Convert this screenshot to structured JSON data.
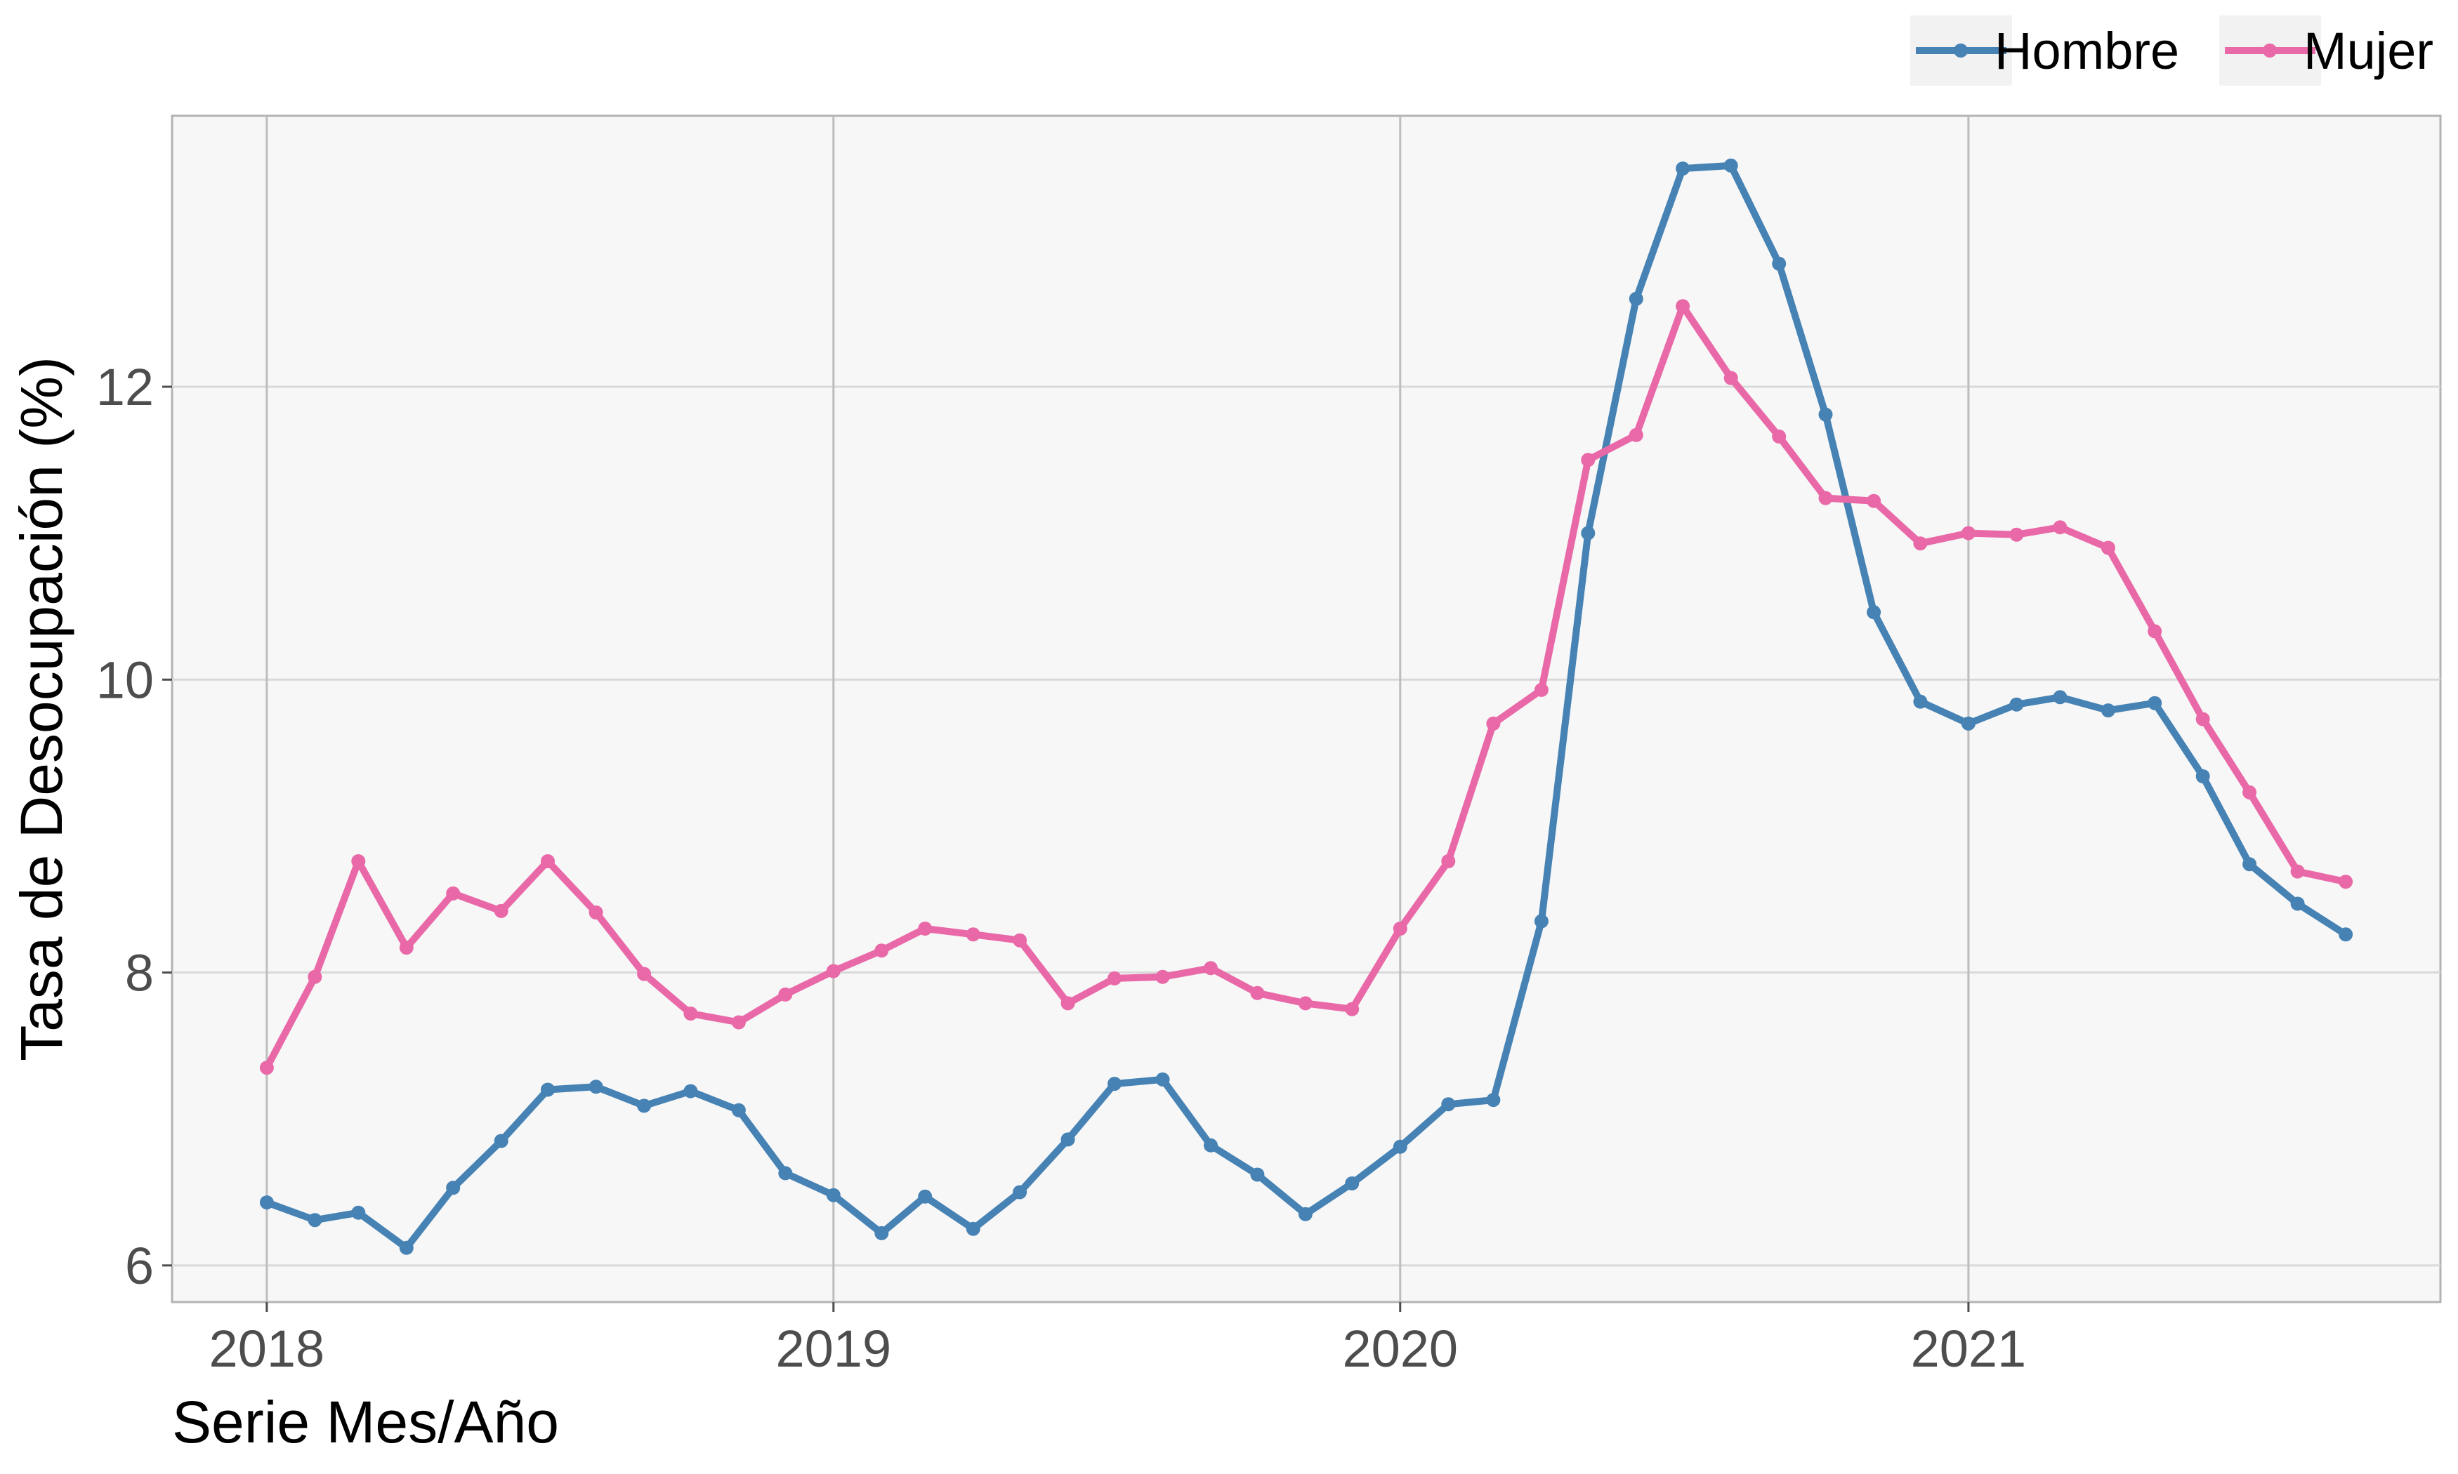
{
  "chart_data": {
    "type": "line",
    "xlabel": "Serie Mes/Año",
    "ylabel": "Tasa de Desocupación (%)",
    "x_ticks": [
      2018,
      2019,
      2020,
      2021
    ],
    "y_ticks": [
      6,
      8,
      10,
      12
    ],
    "xlim": [
      "2017-11-01",
      "2021-11-01"
    ],
    "ylim": [
      5.75,
      13.85
    ],
    "grid": true,
    "legend_position": "top-right",
    "x": [
      "2018-01",
      "2018-02",
      "2018-03",
      "2018-04",
      "2018-05",
      "2018-06",
      "2018-07",
      "2018-08",
      "2018-09",
      "2018-10",
      "2018-11",
      "2018-12",
      "2019-01",
      "2019-02",
      "2019-03",
      "2019-04",
      "2019-05",
      "2019-06",
      "2019-07",
      "2019-08",
      "2019-09",
      "2019-10",
      "2019-11",
      "2019-12",
      "2020-01",
      "2020-02",
      "2020-03",
      "2020-04",
      "2020-05",
      "2020-06",
      "2020-07",
      "2020-08",
      "2020-09",
      "2020-10",
      "2020-11",
      "2020-12",
      "2021-01",
      "2021-02",
      "2021-03",
      "2021-04",
      "2021-05",
      "2021-06",
      "2021-07",
      "2021-08",
      "2021-09"
    ],
    "series": [
      {
        "name": "Hombre",
        "color": "#4682b4",
        "values": [
          6.43,
          6.31,
          6.36,
          6.12,
          6.53,
          6.85,
          7.2,
          7.22,
          7.09,
          7.19,
          7.06,
          6.63,
          6.48,
          6.22,
          6.47,
          6.25,
          6.5,
          6.86,
          7.24,
          7.27,
          6.82,
          6.62,
          6.35,
          6.56,
          6.81,
          7.1,
          7.13,
          8.35,
          11.0,
          12.6,
          13.49,
          13.51,
          12.84,
          11.81,
          10.46,
          9.85,
          9.7,
          9.83,
          9.88,
          9.79,
          9.84,
          9.34,
          8.74,
          8.47,
          8.26
        ]
      },
      {
        "name": "Mujer",
        "color": "#e969a8",
        "values": [
          7.35,
          7.97,
          8.76,
          8.17,
          8.54,
          8.42,
          8.76,
          8.41,
          7.99,
          7.72,
          7.66,
          7.85,
          8.01,
          8.15,
          8.3,
          8.26,
          8.22,
          7.79,
          7.96,
          7.97,
          8.03,
          7.86,
          7.79,
          7.75,
          8.3,
          8.76,
          9.7,
          9.93,
          11.5,
          11.67,
          12.55,
          12.06,
          11.66,
          11.24,
          11.22,
          10.93,
          11.0,
          10.99,
          11.04,
          10.9,
          10.33,
          9.73,
          9.23,
          8.69,
          8.62
        ]
      }
    ]
  }
}
